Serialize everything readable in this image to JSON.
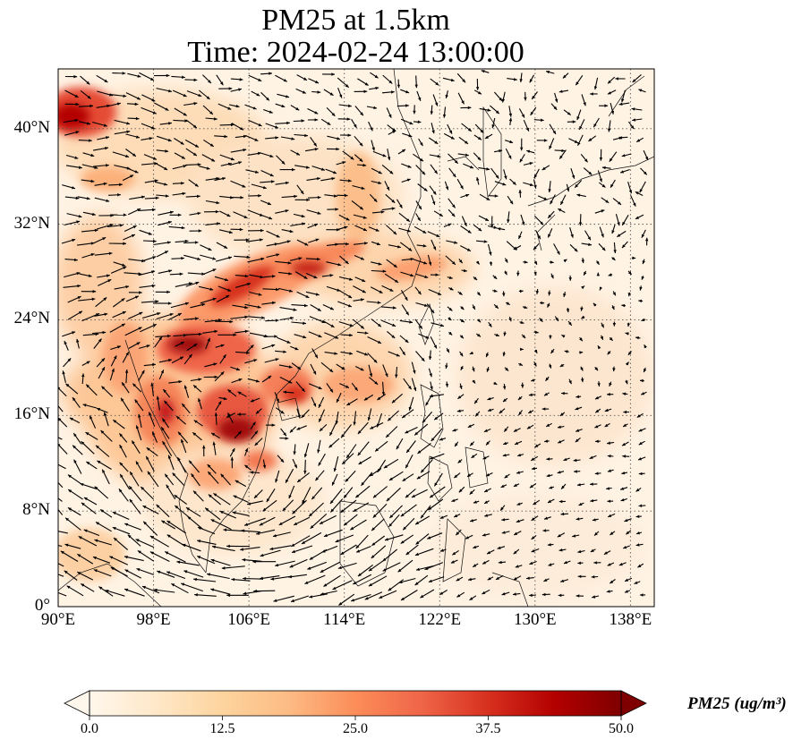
{
  "title": {
    "line1": "PM25 at 1.5km",
    "line2": "Time: 2024-02-24 13:00:00"
  },
  "map": {
    "lon_range": [
      90,
      140
    ],
    "lat_range": [
      0,
      45
    ],
    "lat_ticks": [
      {
        "value": 0,
        "label": "0°"
      },
      {
        "value": 8,
        "label": "8°N"
      },
      {
        "value": 16,
        "label": "16°N"
      },
      {
        "value": 24,
        "label": "24°N"
      },
      {
        "value": 32,
        "label": "32°N"
      },
      {
        "value": 40,
        "label": "40°N"
      }
    ],
    "lon_ticks": [
      {
        "value": 90,
        "label": "90°E"
      },
      {
        "value": 98,
        "label": "98°E"
      },
      {
        "value": 106,
        "label": "106°E"
      },
      {
        "value": 114,
        "label": "114°E"
      },
      {
        "value": 122,
        "label": "122°E"
      },
      {
        "value": 130,
        "label": "130°E"
      },
      {
        "value": 138,
        "label": "138°E"
      }
    ],
    "gridlines": true,
    "field": "PM25",
    "overlay": "wind vectors"
  },
  "colorbar": {
    "label": "PM25 (ug/m³)",
    "range": [
      0,
      50
    ],
    "colormap": "OrRd",
    "extend": "both",
    "ticks": [
      "0.0",
      "12.5",
      "25.0",
      "37.5",
      "50.0"
    ],
    "colors": [
      "#fff7ec",
      "#fee8c8",
      "#fdd49e",
      "#fdbb84",
      "#fc8d59",
      "#ef6548",
      "#d7301f",
      "#b30000",
      "#7f0000"
    ]
  }
}
